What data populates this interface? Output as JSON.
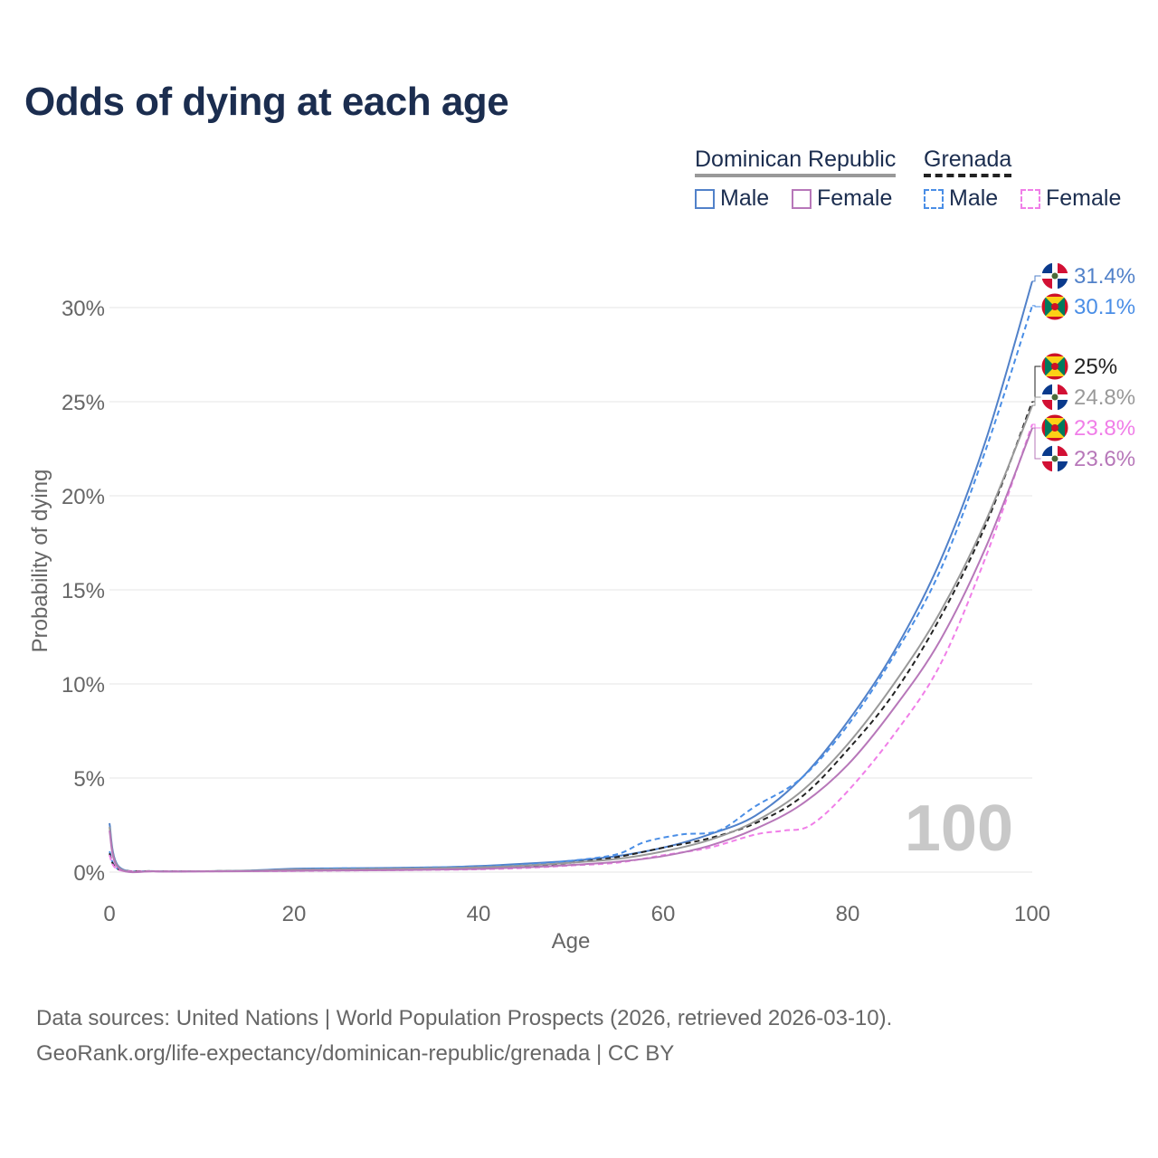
{
  "title": "Odds of dying at each age",
  "legend": {
    "groups": [
      {
        "country": "Dominican Republic",
        "line_color": "#999999",
        "dashed": false
      },
      {
        "country": "Grenada",
        "line_color": "#222222",
        "dashed": true
      }
    ],
    "items": [
      {
        "label": "Male",
        "color": "#5181c9",
        "dashed": false
      },
      {
        "label": "Female",
        "color": "#b777b9",
        "dashed": false
      },
      {
        "label": "Male",
        "color": "#4a8ee6",
        "dashed": true
      },
      {
        "label": "Female",
        "color": "#f07ee8",
        "dashed": true
      }
    ]
  },
  "chart_data": {
    "type": "line",
    "title": "Odds of dying at each age",
    "xlabel": "Age",
    "ylabel": "Probability of dying",
    "xlim": [
      0,
      100
    ],
    "ylim": [
      0,
      32
    ],
    "x_ticks": [
      0,
      20,
      40,
      60,
      80,
      100
    ],
    "x_tick_labels": [
      "0",
      "20",
      "40",
      "60",
      "80",
      "100"
    ],
    "y_ticks": [
      0,
      5,
      10,
      15,
      20,
      25,
      30
    ],
    "y_tick_labels": [
      "0%",
      "5%",
      "10%",
      "15%",
      "20%",
      "25%",
      "30%"
    ],
    "highlight_age": "100",
    "series": [
      {
        "name": "Dominican Republic Male",
        "color": "#5181c9",
        "dashed": false,
        "end_label": "31.4%",
        "flag": "dominican-republic",
        "points": [
          [
            0,
            2.6
          ],
          [
            1,
            0.3
          ],
          [
            5,
            0.05
          ],
          [
            10,
            0.05
          ],
          [
            15,
            0.08
          ],
          [
            20,
            0.18
          ],
          [
            25,
            0.2
          ],
          [
            30,
            0.22
          ],
          [
            35,
            0.25
          ],
          [
            40,
            0.32
          ],
          [
            45,
            0.45
          ],
          [
            50,
            0.6
          ],
          [
            55,
            0.85
          ],
          [
            60,
            1.3
          ],
          [
            65,
            2.0
          ],
          [
            70,
            3.0
          ],
          [
            75,
            5.0
          ],
          [
            80,
            8.0
          ],
          [
            85,
            11.7
          ],
          [
            90,
            16.5
          ],
          [
            95,
            23.0
          ],
          [
            100,
            31.4
          ]
        ]
      },
      {
        "name": "Grenada Male",
        "color": "#4a8ee6",
        "dashed": true,
        "end_label": "30.1%",
        "flag": "grenada",
        "points": [
          [
            0,
            1.1
          ],
          [
            1,
            0.15
          ],
          [
            5,
            0.05
          ],
          [
            10,
            0.05
          ],
          [
            15,
            0.07
          ],
          [
            20,
            0.15
          ],
          [
            25,
            0.2
          ],
          [
            30,
            0.2
          ],
          [
            35,
            0.25
          ],
          [
            40,
            0.3
          ],
          [
            45,
            0.4
          ],
          [
            50,
            0.6
          ],
          [
            55,
            0.95
          ],
          [
            58,
            1.6
          ],
          [
            62,
            2.0
          ],
          [
            66,
            2.2
          ],
          [
            70,
            3.5
          ],
          [
            75,
            5.0
          ],
          [
            80,
            7.8
          ],
          [
            85,
            11.5
          ],
          [
            90,
            16.0
          ],
          [
            95,
            22.5
          ],
          [
            100,
            30.1
          ]
        ]
      },
      {
        "name": "Grenada Total",
        "color": "#222222",
        "dashed": true,
        "end_label": "25%",
        "flag": "grenada",
        "points": [
          [
            0,
            1.0
          ],
          [
            1,
            0.15
          ],
          [
            5,
            0.05
          ],
          [
            10,
            0.05
          ],
          [
            15,
            0.06
          ],
          [
            20,
            0.1
          ],
          [
            25,
            0.12
          ],
          [
            30,
            0.15
          ],
          [
            35,
            0.18
          ],
          [
            40,
            0.22
          ],
          [
            45,
            0.3
          ],
          [
            50,
            0.5
          ],
          [
            55,
            0.8
          ],
          [
            60,
            1.3
          ],
          [
            65,
            1.8
          ],
          [
            70,
            2.6
          ],
          [
            75,
            4.0
          ],
          [
            80,
            6.5
          ],
          [
            85,
            9.5
          ],
          [
            90,
            13.5
          ],
          [
            95,
            18.5
          ],
          [
            100,
            25.0
          ]
        ]
      },
      {
        "name": "Dominican Republic Total",
        "color": "#999999",
        "dashed": false,
        "end_label": "24.8%",
        "flag": "dominican-republic",
        "points": [
          [
            0,
            2.4
          ],
          [
            1,
            0.25
          ],
          [
            5,
            0.05
          ],
          [
            10,
            0.05
          ],
          [
            15,
            0.07
          ],
          [
            20,
            0.13
          ],
          [
            25,
            0.15
          ],
          [
            30,
            0.17
          ],
          [
            35,
            0.2
          ],
          [
            40,
            0.25
          ],
          [
            45,
            0.35
          ],
          [
            50,
            0.5
          ],
          [
            55,
            0.7
          ],
          [
            60,
            1.1
          ],
          [
            65,
            1.7
          ],
          [
            70,
            2.7
          ],
          [
            75,
            4.3
          ],
          [
            80,
            6.8
          ],
          [
            85,
            10.0
          ],
          [
            90,
            13.8
          ],
          [
            95,
            18.7
          ],
          [
            100,
            24.8
          ]
        ]
      },
      {
        "name": "Grenada Female",
        "color": "#f07ee8",
        "dashed": true,
        "end_label": "23.8%",
        "flag": "grenada",
        "points": [
          [
            0,
            0.9
          ],
          [
            1,
            0.12
          ],
          [
            5,
            0.04
          ],
          [
            10,
            0.04
          ],
          [
            15,
            0.05
          ],
          [
            20,
            0.06
          ],
          [
            25,
            0.08
          ],
          [
            30,
            0.1
          ],
          [
            35,
            0.12
          ],
          [
            40,
            0.15
          ],
          [
            45,
            0.22
          ],
          [
            50,
            0.35
          ],
          [
            55,
            0.5
          ],
          [
            60,
            0.9
          ],
          [
            65,
            1.3
          ],
          [
            70,
            2.0
          ],
          [
            73,
            2.2
          ],
          [
            76,
            2.5
          ],
          [
            80,
            4.3
          ],
          [
            85,
            7.3
          ],
          [
            90,
            11.0
          ],
          [
            95,
            16.8
          ],
          [
            100,
            23.8
          ]
        ]
      },
      {
        "name": "Dominican Republic Female",
        "color": "#b777b9",
        "dashed": false,
        "end_label": "23.6%",
        "flag": "dominican-republic",
        "points": [
          [
            0,
            2.2
          ],
          [
            1,
            0.2
          ],
          [
            5,
            0.04
          ],
          [
            10,
            0.04
          ],
          [
            15,
            0.05
          ],
          [
            20,
            0.07
          ],
          [
            25,
            0.09
          ],
          [
            30,
            0.1
          ],
          [
            35,
            0.13
          ],
          [
            40,
            0.17
          ],
          [
            45,
            0.25
          ],
          [
            50,
            0.38
          ],
          [
            55,
            0.55
          ],
          [
            60,
            0.85
          ],
          [
            65,
            1.4
          ],
          [
            70,
            2.3
          ],
          [
            75,
            3.6
          ],
          [
            80,
            5.7
          ],
          [
            85,
            8.7
          ],
          [
            90,
            12.3
          ],
          [
            95,
            17.3
          ],
          [
            100,
            23.6
          ]
        ]
      }
    ]
  },
  "sources": {
    "line1": "Data sources: United Nations | World Population Prospects (2026, retrieved 2026-03-10).",
    "line2": "GeoRank.org/life-expectancy/dominican-republic/grenada | CC BY"
  }
}
